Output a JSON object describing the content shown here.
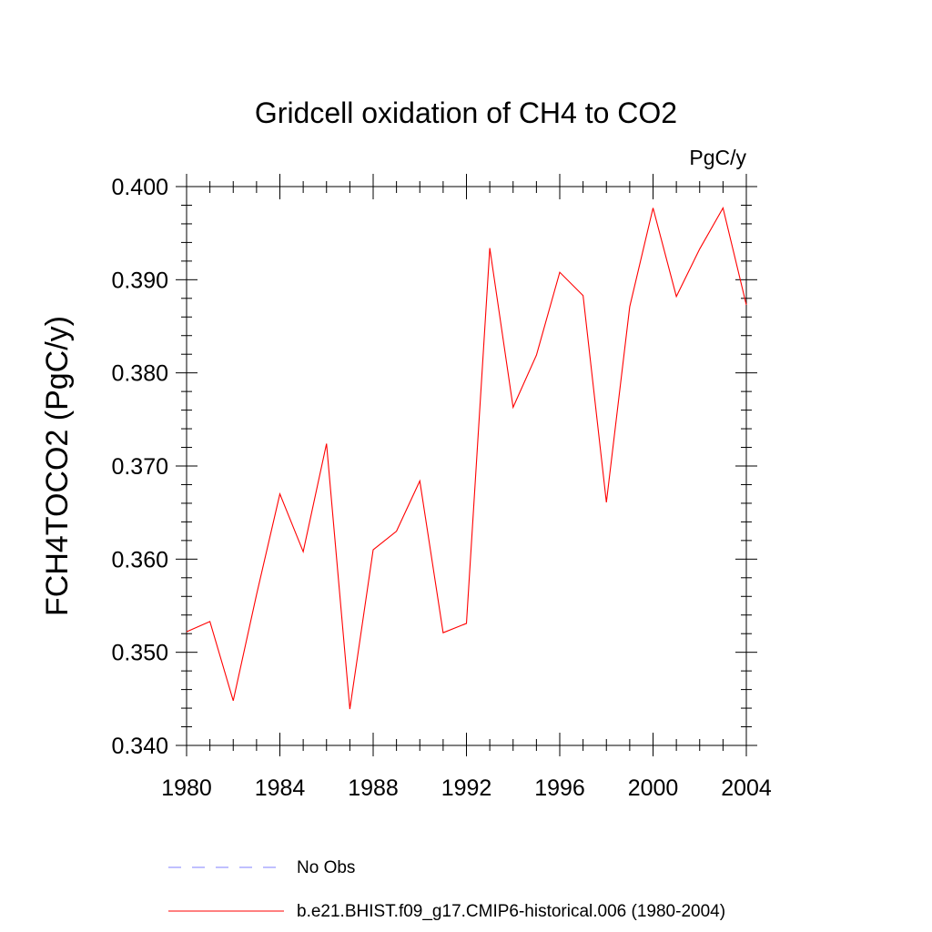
{
  "chart_data": {
    "type": "line",
    "title": "Gridcell oxidation of CH4 to CO2",
    "units": "PgC/y",
    "ylabel": "FCH4TOCO2  (PgC/y)",
    "xlabel": "",
    "xlim": [
      1980,
      2004
    ],
    "ylim": [
      0.34,
      0.4
    ],
    "xticks": [
      "1980",
      "1984",
      "1988",
      "1992",
      "1996",
      "2000",
      "2004"
    ],
    "yticks": [
      "0.340",
      "0.350",
      "0.360",
      "0.370",
      "0.380",
      "0.390",
      "0.400"
    ],
    "grid": false,
    "legend_placement": "bottom",
    "x": [
      1980,
      1981,
      1982,
      1983,
      1984,
      1985,
      1986,
      1987,
      1988,
      1989,
      1990,
      1991,
      1992,
      1993,
      1994,
      1995,
      1996,
      1997,
      1998,
      1999,
      2000,
      2001,
      2002,
      2003,
      2004
    ],
    "series": [
      {
        "name": "b.e21.BHIST.f09_g17.CMIP6-historical.006 (1980-2004)",
        "color": "#ff0000",
        "style": "solid",
        "values": [
          0.3522,
          0.3533,
          0.3448,
          0.3562,
          0.367,
          0.3608,
          0.3724,
          0.3439,
          0.361,
          0.363,
          0.3684,
          0.3521,
          0.3531,
          0.3934,
          0.3763,
          0.3819,
          0.3908,
          0.3883,
          0.3661,
          0.3871,
          0.3977,
          0.3882,
          0.3933,
          0.3977,
          0.3873
        ]
      }
    ],
    "legend": [
      {
        "label": "No Obs",
        "color": "#8080ff",
        "style": "dashed"
      },
      {
        "label": "b.e21.BHIST.f09_g17.CMIP6-historical.006 (1980-2004)",
        "color": "#ff0000",
        "style": "solid"
      }
    ]
  }
}
